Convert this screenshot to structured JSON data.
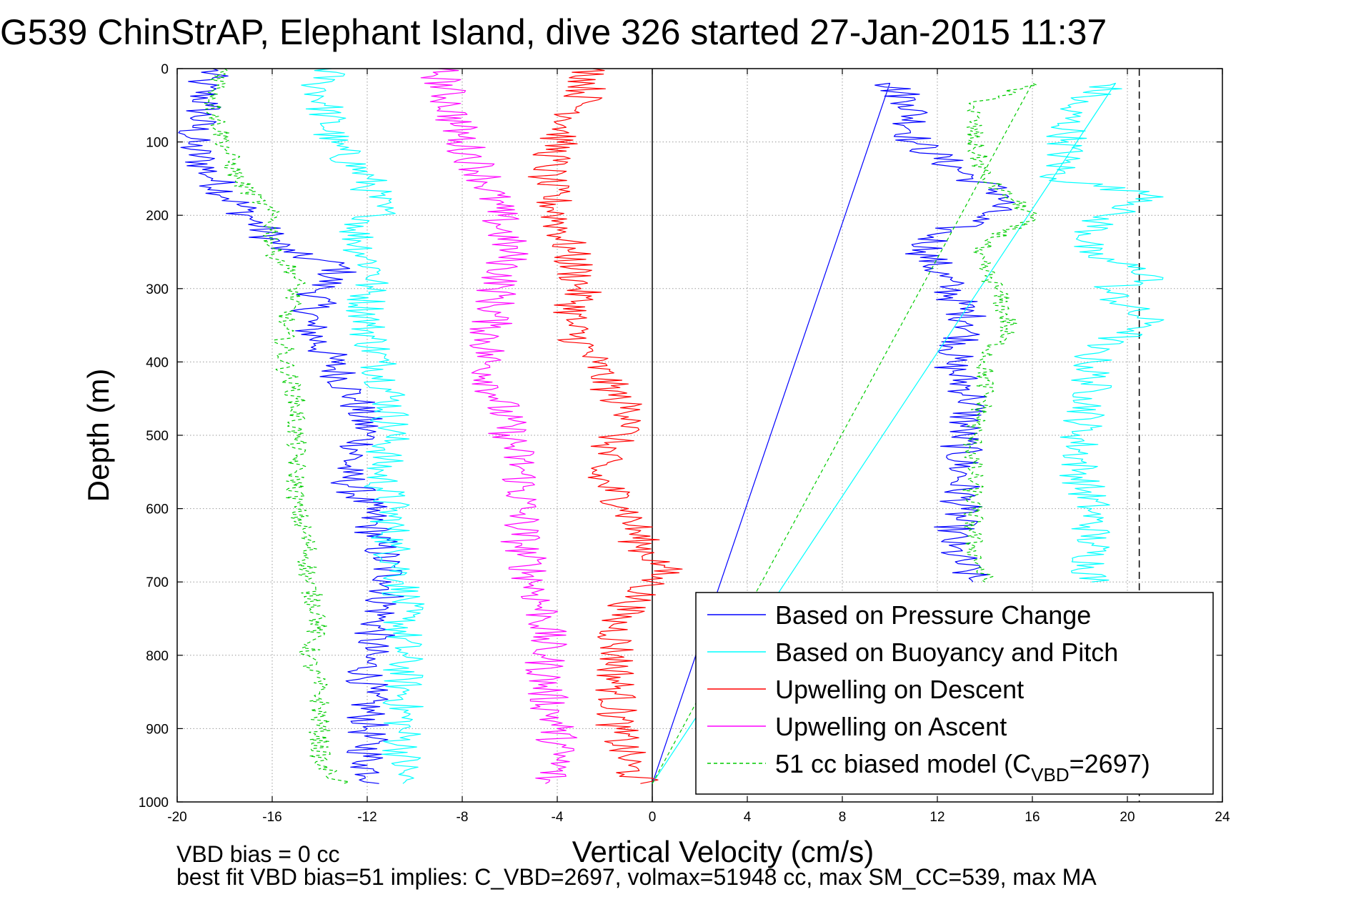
{
  "chart_data": {
    "type": "line",
    "title": "G539 ChinStrAP, Elephant Island, dive 326 started 27-Jan-2015 11:37",
    "xlabel": "Vertical Velocity (cm/s)",
    "ylabel": "Depth (m)",
    "xlim": [
      -20,
      24
    ],
    "ylim": [
      0,
      1000
    ],
    "y_reversed": true,
    "grid": true,
    "x_ticks": [
      "-20",
      "-16",
      "-12",
      "-8",
      "-4",
      "0",
      "4",
      "8",
      "12",
      "16",
      "20",
      "24"
    ],
    "y_ticks": [
      "0",
      "100",
      "200",
      "300",
      "400",
      "500",
      "600",
      "700",
      "800",
      "900",
      "1000"
    ],
    "legend_position": "bottom-right",
    "reference_lines": [
      {
        "x": 0,
        "style": "solid",
        "color": "#000000"
      },
      {
        "x": 20.5,
        "style": "dashed",
        "color": "#000000"
      }
    ],
    "series": [
      {
        "name": "Based on Pressure Change",
        "color": "#0000ff",
        "style": "solid",
        "segments": [
          {
            "depth": [
              0,
              20,
              50,
              100,
              150,
              200,
              250,
              270,
              300,
              350,
              400,
              450,
              500,
              550,
              600,
              650,
              700,
              750,
              800,
              850,
              900,
              950,
              975
            ],
            "velocity": [
              -18.5,
              -19.0,
              -18.8,
              -19.5,
              -18.5,
              -17.0,
              -15.5,
              -13.0,
              -14.0,
              -14.5,
              -13.5,
              -12.5,
              -12.0,
              -13.0,
              -12.0,
              -11.5,
              -11.0,
              -11.5,
              -12.0,
              -12.0,
              -12.0,
              -12.0,
              -11.5
            ]
          },
          {
            "depth": [
              975,
              20,
              50,
              100,
              150,
              175,
              200,
              225,
              250,
              300,
              350,
              400,
              450,
              500,
              550,
              600,
              650,
              700
            ],
            "velocity": [
              0,
              10.0,
              11.0,
              11.0,
              13.5,
              15.0,
              14.0,
              12.0,
              11.5,
              12.5,
              13.5,
              12.5,
              13.5,
              13.0,
              13.0,
              13.0,
              12.5,
              13.5
            ]
          }
        ]
      },
      {
        "name": "Based on Buoyancy and Pitch",
        "color": "#00ffff",
        "style": "solid",
        "segments": [
          {
            "depth": [
              0,
              20,
              50,
              100,
              150,
              200,
              220,
              260,
              280,
              300,
              350,
              400,
              450,
              500,
              550,
              600,
              650,
              700,
              750,
              800,
              850,
              900,
              975
            ],
            "velocity": [
              -13.5,
              -14.0,
              -13.8,
              -13.5,
              -12.0,
              -11.5,
              -12.5,
              -12.0,
              -11.5,
              -12.0,
              -12.0,
              -11.5,
              -11.0,
              -11.0,
              -11.5,
              -11.0,
              -11.0,
              -10.5,
              -10.5,
              -10.5,
              -10.5,
              -10.5,
              -10.5
            ]
          },
          {
            "depth": [
              975,
              20,
              50,
              100,
              150,
              175,
              200,
              250,
              285,
              300,
              350,
              380,
              400,
              450,
              500,
              550,
              600,
              650,
              700
            ],
            "velocity": [
              0,
              19.5,
              17.5,
              17.5,
              17.0,
              21.5,
              19.0,
              18.0,
              21.5,
              19.0,
              21.0,
              18.5,
              18.5,
              18.5,
              18.0,
              18.0,
              18.5,
              18.5,
              18.5
            ]
          }
        ]
      },
      {
        "name": "Upwelling on Descent",
        "color": "#ff0000",
        "style": "solid",
        "segments": [
          {
            "depth": [
              0,
              50,
              100,
              150,
              200,
              250,
              300,
              350,
              400,
              450,
              480,
              500,
              550,
              600,
              650,
              680,
              700,
              750,
              800,
              850,
              900,
              950,
              975
            ],
            "velocity": [
              -2.5,
              -3.0,
              -4.0,
              -4.5,
              -4.0,
              -3.5,
              -3.0,
              -3.5,
              -2.5,
              -1.5,
              -0.5,
              -1.5,
              -2.5,
              -1.0,
              -0.5,
              0.5,
              0.0,
              -1.5,
              -1.5,
              -1.5,
              -1.5,
              -1.0,
              -0.5
            ]
          }
        ]
      },
      {
        "name": "Upwelling on Ascent",
        "color": "#ff00ff",
        "style": "solid",
        "segments": [
          {
            "depth": [
              0,
              50,
              100,
              150,
              200,
              250,
              300,
              350,
              400,
              450,
              500,
              550,
              600,
              650,
              700,
              750,
              800,
              850,
              900,
              950,
              975
            ],
            "velocity": [
              -9.0,
              -8.5,
              -8.0,
              -7.0,
              -6.5,
              -6.0,
              -6.5,
              -6.8,
              -7.0,
              -6.5,
              -6.0,
              -5.5,
              -5.5,
              -5.5,
              -5.0,
              -4.5,
              -4.5,
              -4.5,
              -4.0,
              -4.0,
              -4.5
            ]
          }
        ]
      },
      {
        "name": "51 cc biased model (C_VBD=2697)",
        "color": "#00cc00",
        "style": "dashed",
        "segments": [
          {
            "depth": [
              0,
              50,
              100,
              150,
              200,
              250,
              280,
              300,
              350,
              400,
              450,
              500,
              550,
              600,
              650,
              700,
              750,
              800,
              850,
              900,
              950,
              975
            ],
            "velocity": [
              -18.0,
              -18.5,
              -18.0,
              -17.5,
              -16.0,
              -16.0,
              -15.0,
              -15.0,
              -15.5,
              -15.5,
              -15.0,
              -15.0,
              -15.0,
              -15.0,
              -14.5,
              -14.5,
              -14.0,
              -14.5,
              -14.0,
              -14.0,
              -14.0,
              -13.0
            ]
          },
          {
            "depth": [
              975,
              20,
              50,
              100,
              150,
              200,
              250,
              300,
              350,
              400,
              450,
              500,
              550,
              600,
              650,
              700
            ],
            "velocity": [
              0,
              16.0,
              13.5,
              13.5,
              14.0,
              16.0,
              13.5,
              14.5,
              15.0,
              14.0,
              14.0,
              13.5,
              13.5,
              13.5,
              13.5,
              14.0
            ]
          }
        ]
      }
    ],
    "legend_entries": [
      "Based on Pressure Change",
      "Based on Buoyancy and Pitch",
      "Upwelling on Descent",
      "Upwelling on Ascent"
    ],
    "legend_model_prefix": "51 cc biased model (C",
    "legend_model_subscript": "VBD",
    "legend_model_suffix": "=2697)",
    "annotations": {
      "vbd_bias": "VBD bias = 0 cc",
      "best_fit": "best fit VBD bias=51 implies: C_VBD=2697, volmax=51948 cc, max SM_CC=539, max MA"
    }
  }
}
